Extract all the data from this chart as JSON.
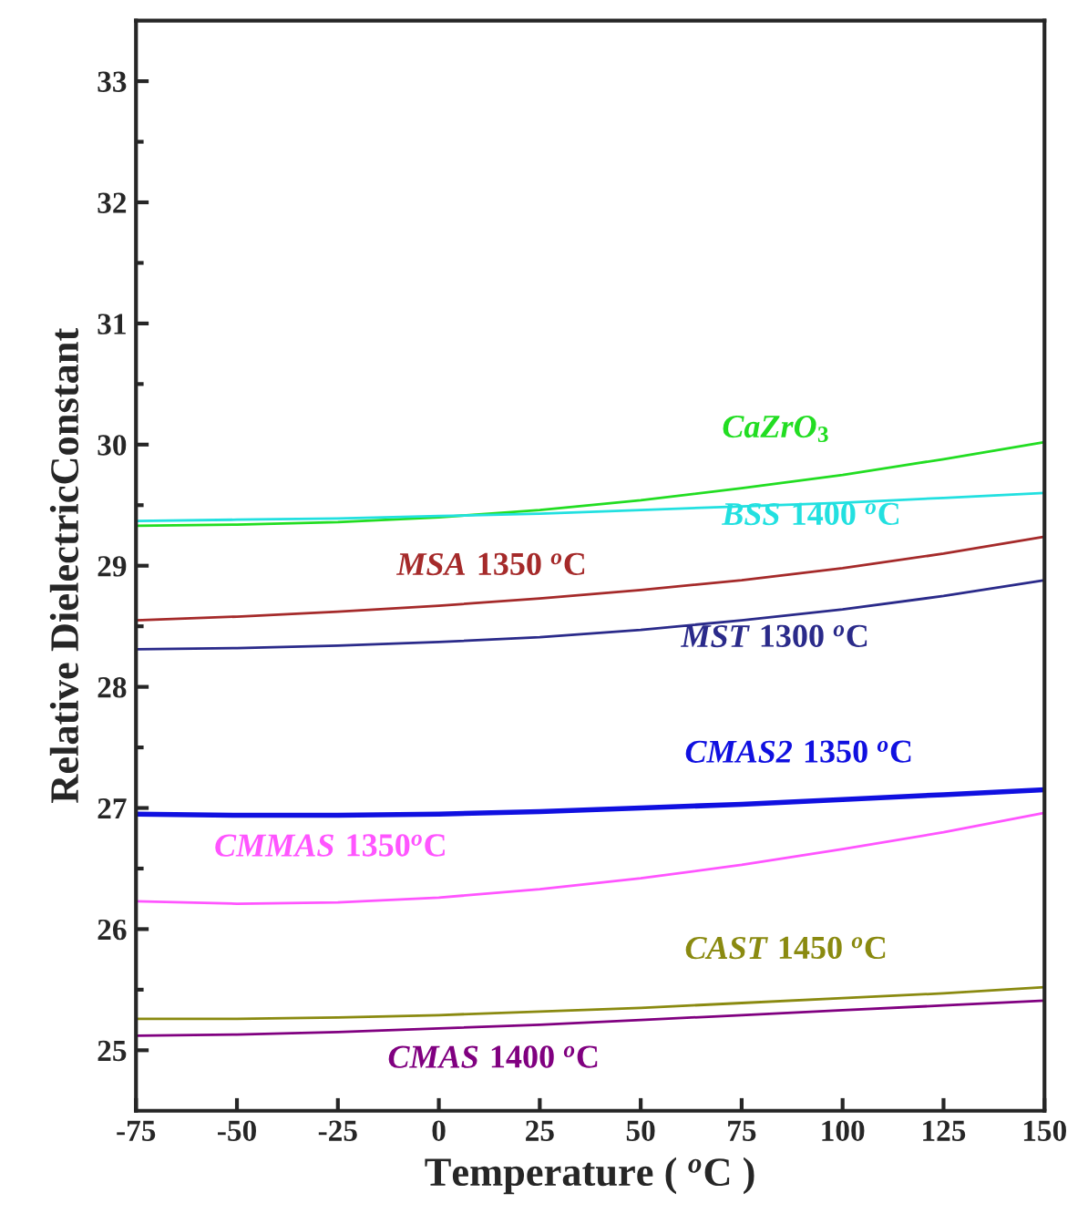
{
  "chart_data": {
    "type": "line",
    "xlabel": "Temperature ( $^{o}$C )",
    "ylabel": "Relative DielectricConstant",
    "x": [
      -75,
      -50,
      -25,
      0,
      25,
      50,
      75,
      100,
      125,
      150
    ],
    "series": [
      {
        "name": "CaZrO$_{3}$",
        "color": "#22dd22",
        "values": [
          29.33,
          29.34,
          29.36,
          29.4,
          29.46,
          29.54,
          29.64,
          29.75,
          29.88,
          30.02
        ]
      },
      {
        "name": "BSS 1400 $^{o}$C",
        "color": "#22e0e0",
        "values": [
          29.37,
          29.38,
          29.39,
          29.41,
          29.43,
          29.46,
          29.49,
          29.52,
          29.56,
          29.6
        ]
      },
      {
        "name": "MSA 1350 $^{o}$C",
        "color": "#a52a2a",
        "values": [
          28.55,
          28.58,
          28.62,
          28.67,
          28.73,
          28.8,
          28.88,
          28.98,
          29.1,
          29.24
        ]
      },
      {
        "name": "MST 1300 $^{o}$C",
        "color": "#2a2a8a",
        "values": [
          28.31,
          28.32,
          28.34,
          28.37,
          28.41,
          28.47,
          28.55,
          28.64,
          28.75,
          28.88
        ]
      },
      {
        "name": "CMAS2 1350 $^{o}$C",
        "color": "#1010e0",
        "values": [
          26.95,
          26.94,
          26.94,
          26.95,
          26.97,
          27.0,
          27.03,
          27.07,
          27.11,
          27.15
        ]
      },
      {
        "name": "CMMAS 1350$^{o}$C",
        "color": "#ff55ff",
        "values": [
          26.23,
          26.21,
          26.22,
          26.26,
          26.33,
          26.42,
          26.53,
          26.66,
          26.8,
          26.96
        ]
      },
      {
        "name": "CAST 1450 $^{o}$C",
        "color": "#8a8a10",
        "values": [
          25.26,
          25.26,
          25.27,
          25.29,
          25.32,
          25.35,
          25.39,
          25.43,
          25.47,
          25.52
        ]
      },
      {
        "name": "CMAS 1400 $^{o}$C",
        "color": "#800080",
        "values": [
          25.12,
          25.13,
          25.15,
          25.18,
          25.21,
          25.25,
          25.29,
          25.33,
          25.37,
          25.41
        ]
      }
    ],
    "xlim": [
      -75,
      150
    ],
    "xticks": [
      -75,
      -50,
      -25,
      0,
      25,
      50,
      75,
      100,
      125,
      150
    ],
    "ylim": [
      24.5,
      33.5
    ],
    "yticks": [
      25,
      26,
      27,
      28,
      29,
      30,
      31,
      32,
      33
    ],
    "grid": false,
    "legend": false,
    "marker": "none",
    "line_style": "solid"
  }
}
